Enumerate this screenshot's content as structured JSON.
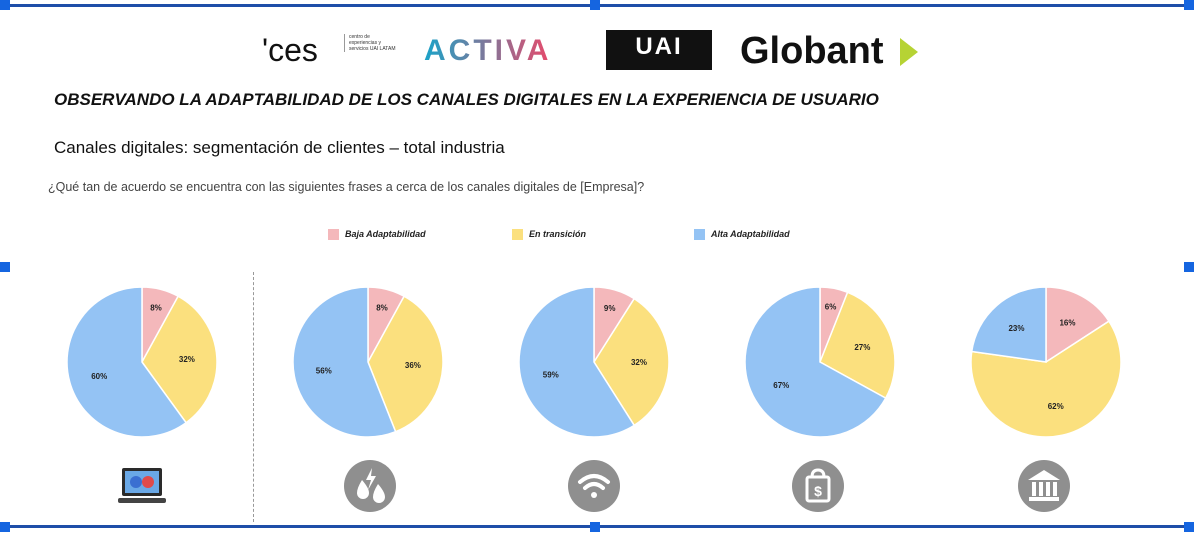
{
  "logos": {
    "ces": "'ces",
    "ces_sub": "centro de experiencias y servicios UAI LATAM",
    "activa": "ACTIVA",
    "uai": "UAI",
    "globant": "Globant"
  },
  "title": "OBSERVANDO LA ADAPTABILIDAD DE LOS CANALES DIGITALES EN LA EXPERIENCIA DE USUARIO",
  "subtitle": "Canales digitales: segmentación de clientes – total industria",
  "question": "¿Qué tan de acuerdo se encuentra con las siguientes frases a cerca de los canales digitales de [Empresa]?",
  "legend": [
    {
      "label": "Baja Adaptabilidad",
      "color": "#f4b8bb"
    },
    {
      "label": "En transición",
      "color": "#fbe07e"
    },
    {
      "label": "Alta Adaptabilidad",
      "color": "#94c3f4"
    }
  ],
  "icons": [
    "laptop-icon",
    "utilities-icon",
    "wifi-icon",
    "shopping-bag-icon",
    "bank-icon"
  ],
  "chart_data": [
    {
      "type": "pie",
      "labels": [
        "Baja Adaptabilidad",
        "En transición",
        "Alta Adaptabilidad"
      ],
      "values": [
        8,
        32,
        60
      ]
    },
    {
      "type": "pie",
      "labels": [
        "Baja Adaptabilidad",
        "En transición",
        "Alta Adaptabilidad"
      ],
      "values": [
        8,
        36,
        56
      ]
    },
    {
      "type": "pie",
      "labels": [
        "Baja Adaptabilidad",
        "En transición",
        "Alta Adaptabilidad"
      ],
      "values": [
        9,
        32,
        59
      ]
    },
    {
      "type": "pie",
      "labels": [
        "Baja Adaptabilidad",
        "En transición",
        "Alta Adaptabilidad"
      ],
      "values": [
        6,
        27,
        67
      ]
    },
    {
      "type": "pie",
      "labels": [
        "Baja Adaptabilidad",
        "En transición",
        "Alta Adaptabilidad"
      ],
      "values": [
        16,
        62,
        23
      ]
    }
  ]
}
